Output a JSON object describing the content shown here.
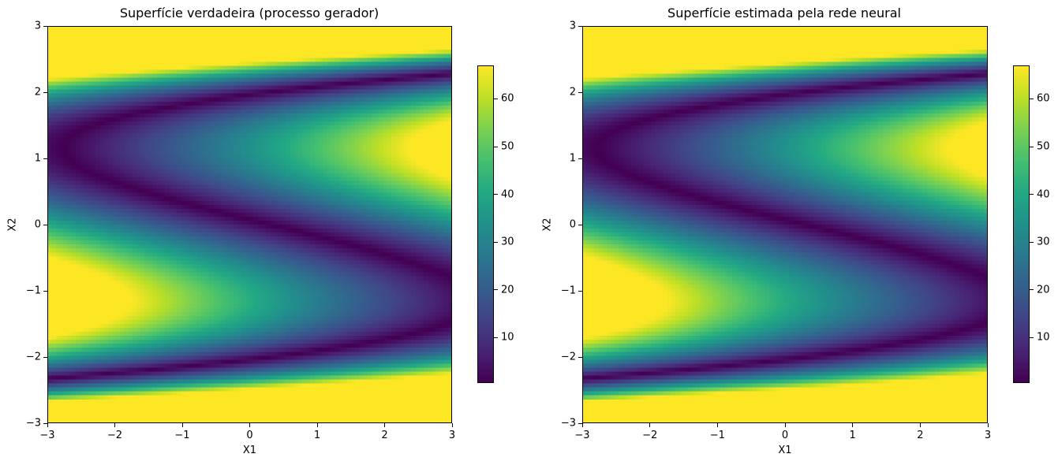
{
  "chart_data": [
    {
      "type": "heatmap",
      "title": "Superfície verdadeira (processo gerador)",
      "xlabel": "X1",
      "ylabel": "X2",
      "xlim": [
        -3,
        3
      ],
      "ylim": [
        -3,
        3
      ],
      "xticks": [
        "−3",
        "−2",
        "−1",
        "0",
        "1",
        "2",
        "3"
      ],
      "yticks": [
        "3",
        "2",
        "1",
        "0",
        "−1",
        "−2",
        "−3"
      ],
      "colormap": "viridis",
      "colorbar": {
        "range": [
          0.5,
          67
        ],
        "ticks": [
          "60",
          "50",
          "40",
          "30",
          "20",
          "10"
        ],
        "tick_values": [
          60,
          50,
          40,
          30,
          20,
          10
        ]
      },
      "surface": "(x2^3 - 4*x2 - x1)^2 + 10*(x2 - 1)... approximated",
      "grid": false
    },
    {
      "type": "heatmap",
      "title": "Superfície estimada pela rede neural",
      "xlabel": "X1",
      "ylabel": "X2",
      "xlim": [
        -3,
        3
      ],
      "ylim": [
        -3,
        3
      ],
      "xticks": [
        "−3",
        "−2",
        "−1",
        "0",
        "1",
        "2",
        "3"
      ],
      "yticks": [
        "3",
        "2",
        "1",
        "0",
        "−1",
        "−2",
        "−3"
      ],
      "colormap": "viridis",
      "colorbar": {
        "range": [
          0.5,
          67
        ],
        "ticks": [
          "60",
          "50",
          "40",
          "30",
          "20",
          "10"
        ],
        "tick_values": [
          60,
          50,
          40,
          30,
          20,
          10
        ]
      },
      "grid": false
    }
  ],
  "viridis": [
    "#440154",
    "#482475",
    "#414487",
    "#355f8d",
    "#2a788e",
    "#21918c",
    "#22a884",
    "#44bf70",
    "#7ad151",
    "#bddf26",
    "#fde725"
  ]
}
